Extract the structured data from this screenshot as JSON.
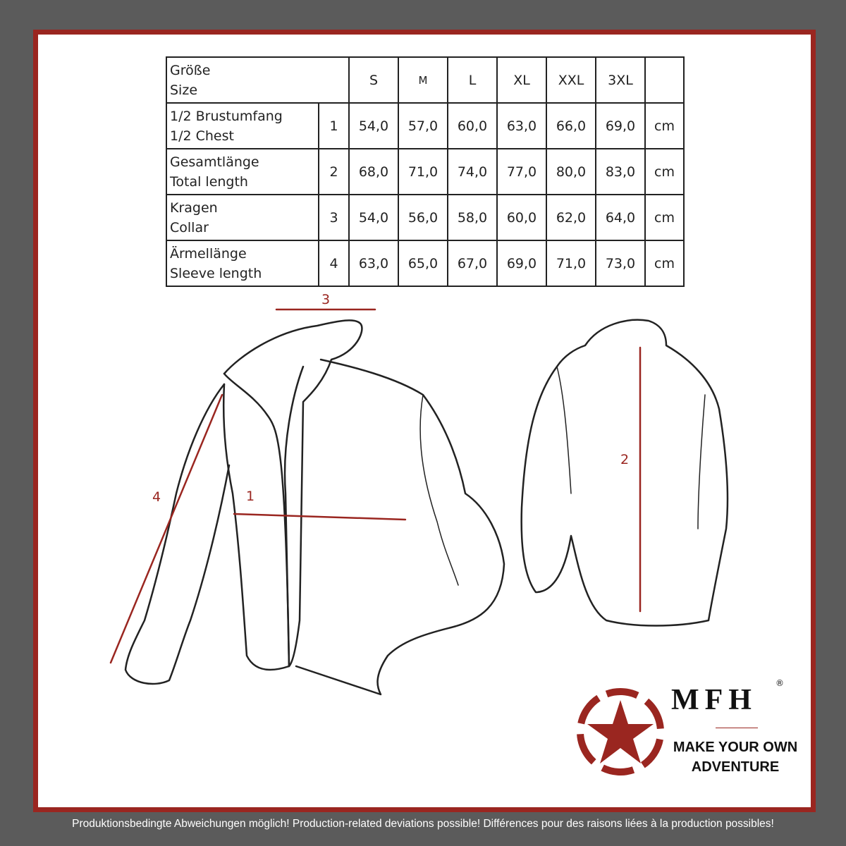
{
  "size_table": {
    "header": {
      "label_de": "Größe",
      "label_en": "Size",
      "sizes": [
        "S",
        "M",
        "L",
        "XL",
        "XXL",
        "3XL"
      ]
    },
    "rows": [
      {
        "label_de": "1/2 Brustumfang",
        "label_en": "1/2 Chest",
        "num": "1",
        "values": [
          "54,0",
          "57,0",
          "60,0",
          "63,0",
          "66,0",
          "69,0"
        ],
        "unit": "cm"
      },
      {
        "label_de": "Gesamtlänge",
        "label_en": "Total length",
        "num": "2",
        "values": [
          "68,0",
          "71,0",
          "74,0",
          "77,0",
          "80,0",
          "83,0"
        ],
        "unit": "cm"
      },
      {
        "label_de": "Kragen",
        "label_en": "Collar",
        "num": "3",
        "values": [
          "54,0",
          "56,0",
          "58,0",
          "60,0",
          "62,0",
          "64,0"
        ],
        "unit": "cm"
      },
      {
        "label_de": "Ärmellänge",
        "label_en": "Sleeve length",
        "num": "4",
        "values": [
          "63,0",
          "65,0",
          "67,0",
          "69,0",
          "71,0",
          "73,0"
        ],
        "unit": "cm"
      }
    ]
  },
  "measure_labels": {
    "chest": "1",
    "length": "2",
    "collar": "3",
    "sleeve": "4"
  },
  "logo": {
    "brand": "MFH",
    "registered": "®",
    "slogan_line1": "MAKE YOUR OWN",
    "slogan_line2": "ADVENTURE",
    "icon": "star-in-circle-icon"
  },
  "colors": {
    "accent": "#9a2620",
    "background": "#5b5b5b"
  },
  "footer": "Produktionsbedingte Abweichungen möglich! Production-related deviations possible! Différences pour des raisons liées à la production possibles!"
}
